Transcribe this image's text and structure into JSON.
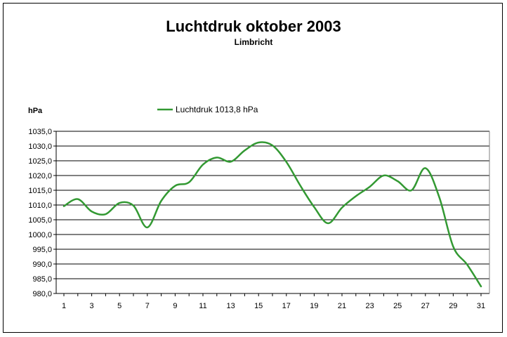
{
  "chart_data": {
    "type": "line",
    "title": "Luchtdruk oktober 2003",
    "subtitle": "Limbricht",
    "ylabel": "hPa",
    "ylim": [
      980,
      1035
    ],
    "yticks": [
      "1035,0",
      "1030,0",
      "1025,0",
      "1020,0",
      "1015,0",
      "1010,0",
      "1005,0",
      "1000,0",
      "995,0",
      "990,0",
      "985,0",
      "980,0"
    ],
    "xlim": [
      1,
      31
    ],
    "xticks": [
      "1",
      "3",
      "5",
      "7",
      "9",
      "11",
      "13",
      "15",
      "17",
      "19",
      "21",
      "23",
      "25",
      "27",
      "29",
      "31"
    ],
    "grid": "horizontal",
    "legend_position": "top",
    "colors": {
      "series": "#339933",
      "grid": "#000000",
      "axis": "#000000"
    },
    "series": [
      {
        "name": "Luchtdruk 1013,8 hPa",
        "x": [
          1,
          2,
          3,
          4,
          5,
          6,
          7,
          8,
          9,
          10,
          11,
          12,
          13,
          14,
          15,
          16,
          17,
          18,
          19,
          20,
          21,
          22,
          23,
          24,
          25,
          26,
          27,
          28,
          29,
          30,
          31
        ],
        "values": [
          1009.6,
          1012.0,
          1007.8,
          1006.9,
          1010.7,
          1009.8,
          1002.4,
          1011.4,
          1016.5,
          1017.7,
          1023.7,
          1026.1,
          1024.7,
          1028.5,
          1031.2,
          1030.2,
          1024.6,
          1016.6,
          1009.3,
          1003.8,
          1009.1,
          1013.0,
          1016.2,
          1020.0,
          1018.1,
          1015.0,
          1022.5,
          1012.6,
          995.9,
          989.8,
          982.4
        ]
      }
    ]
  }
}
